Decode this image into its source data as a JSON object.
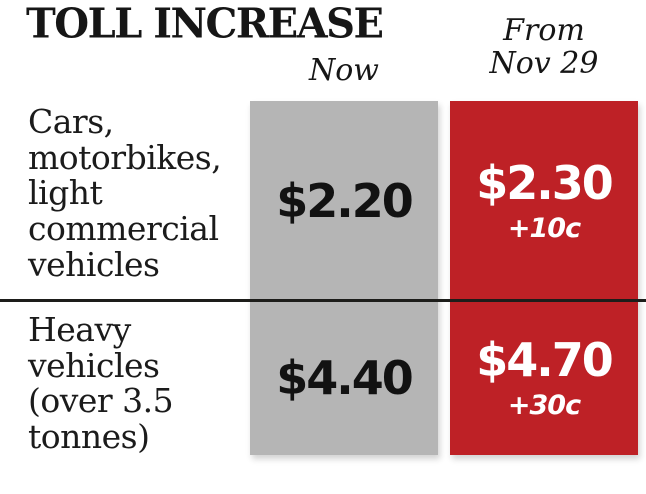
{
  "title": "TOLL INCREASE",
  "header": {
    "now_label": "Now",
    "from_line1": "From",
    "from_line2": "Nov 29"
  },
  "colors": {
    "now_bg": "#b5b5b5",
    "from_bg": "#be2126",
    "text_dark": "#161616",
    "text_light": "#ffffff",
    "divider": "#1d1d1a"
  },
  "rows": [
    {
      "label": "Cars, motorbikes, light commercial vehicles",
      "now_value": "$2.20",
      "from_value": "$2.30",
      "change": "+10c"
    },
    {
      "label": "Heavy vehicles (over 3.5 tonnes)",
      "now_value": "$4.40",
      "from_value": "$4.70",
      "change": "+30c"
    }
  ],
  "chart_data": {
    "type": "table",
    "title": "TOLL INCREASE",
    "columns": [
      "Now",
      "From Nov 29"
    ],
    "rows": [
      {
        "category": "Cars, motorbikes, light commercial vehicles",
        "now": "$2.20",
        "from_nov_29": "$2.30",
        "change": "+10c",
        "change_cents": 10
      },
      {
        "category": "Heavy vehicles (over 3.5 tonnes)",
        "now": "$4.40",
        "from_nov_29": "$4.70",
        "change": "+30c",
        "change_cents": 30
      }
    ],
    "layout": {
      "now_column_color": "#b5b5b5",
      "from_column_color": "#be2126",
      "divider_between_rows": true
    }
  }
}
